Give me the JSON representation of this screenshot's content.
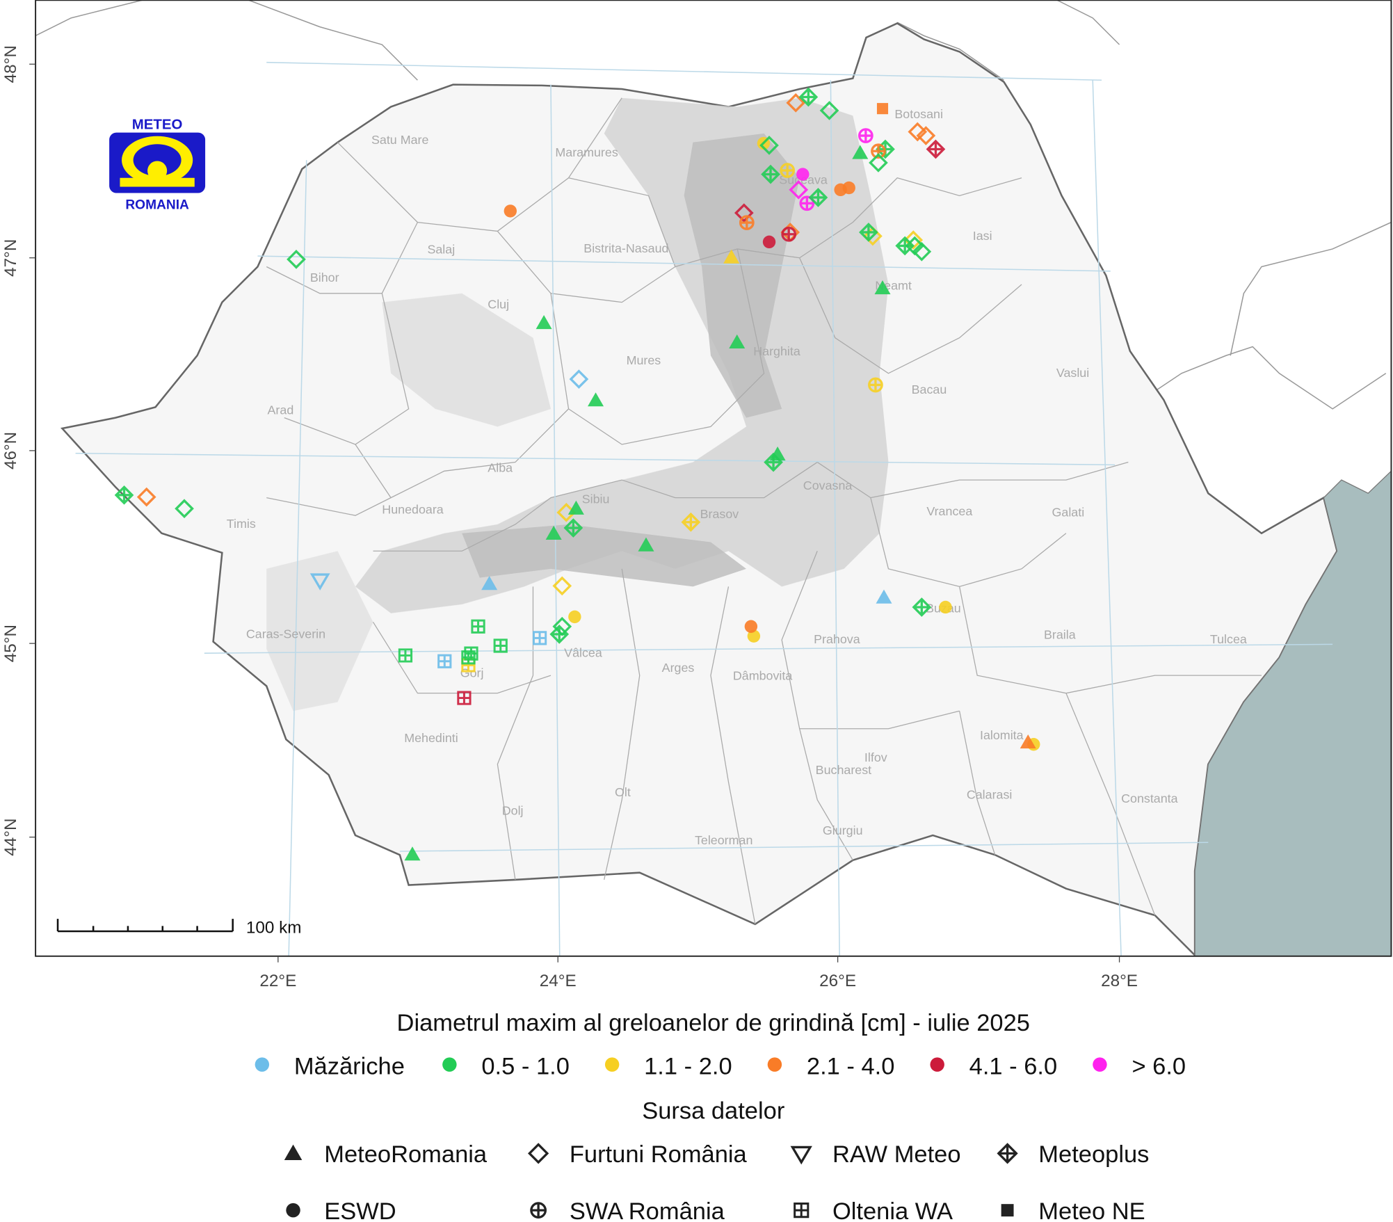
{
  "colors": {
    "Mazariche": "#6cbde9",
    "0.5-1.0": "#22cc55",
    "1.1-2.0": "#f6cf22",
    "2.1-4.0": "#f97c27",
    "4.1-6.0": "#cc1b3a",
    ">6.0": "#ff22ee",
    "sea": "#a8bdbe",
    "graticule": "#bcd9e8"
  },
  "logo": {
    "top": "METEO",
    "bottom": "ROMANIA"
  },
  "axes": {
    "lat_labels": [
      "48°N",
      "47°N",
      "46°N",
      "45°N",
      "44°N"
    ],
    "lon_labels": [
      "22°E",
      "24°E",
      "26°E",
      "28°E"
    ]
  },
  "scale_bar": {
    "label": "100 km"
  },
  "map": {
    "counties": [
      "Satu Mare",
      "Maramures",
      "Botosani",
      "Suceava",
      "Iasi",
      "Salaj",
      "Bistrita-Nasaud",
      "Bihor",
      "Cluj",
      "Neamt",
      "Harghita",
      "Mures",
      "Vaslui",
      "Bacau",
      "Arad",
      "Alba",
      "Covasna",
      "Sibiu",
      "Hunedoara",
      "Brasov",
      "Vrancea",
      "Galati",
      "Timis",
      "Buzau",
      "Caras-Severin",
      "Prahova",
      "Braila",
      "Tulcea",
      "Vâlcea",
      "Arges",
      "Gorj",
      "Dâmbovita",
      "Mehedinti",
      "Ialomita",
      "Ilfov",
      "Bucharest",
      "Calarasi",
      "Constanta",
      "Olt",
      "Dolj",
      "Teleorman",
      "Giurgiu"
    ]
  },
  "legend": {
    "size_title": "Diametrul maxim al greloanelor de grindină [cm] - iulie 2025",
    "size_classes": [
      {
        "key": "Mazariche",
        "label": "Măzăriche"
      },
      {
        "key": "0.5-1.0",
        "label": "0.5 - 1.0"
      },
      {
        "key": "1.1-2.0",
        "label": "1.1 - 2.0"
      },
      {
        "key": "2.1-4.0",
        "label": "2.1 - 4.0"
      },
      {
        "key": "4.1-6.0",
        "label": "4.1 - 6.0"
      },
      {
        "key": ">6.0",
        "label": "> 6.0"
      }
    ],
    "source_title": "Sursa datelor",
    "sources": [
      {
        "key": "triangle",
        "label": "MeteoRomania"
      },
      {
        "key": "diamond",
        "label": "Furtuni România"
      },
      {
        "key": "down-triangle",
        "label": "RAW Meteo"
      },
      {
        "key": "diamond-plus",
        "label": "Meteoplus"
      },
      {
        "key": "circle",
        "label": "ESWD"
      },
      {
        "key": "circle-plus",
        "label": "SWA România"
      },
      {
        "key": "square-plus",
        "label": "Oltenia WA"
      },
      {
        "key": "square",
        "label": "Meteo NE"
      }
    ]
  },
  "points": [
    {
      "lon": 25.7,
      "lat": 47.8,
      "size": "2.1-4.0",
      "source": "diamond"
    },
    {
      "lon": 25.79,
      "lat": 47.83,
      "size": "0.5-1.0",
      "source": "diamond-plus"
    },
    {
      "lon": 25.94,
      "lat": 47.76,
      "size": "0.5-1.0",
      "source": "diamond"
    },
    {
      "lon": 26.32,
      "lat": 47.77,
      "size": "2.1-4.0",
      "source": "square"
    },
    {
      "lon": 25.47,
      "lat": 47.59,
      "size": "1.1-2.0",
      "source": "circle"
    },
    {
      "lon": 25.51,
      "lat": 47.58,
      "size": "0.5-1.0",
      "source": "diamond"
    },
    {
      "lon": 26.2,
      "lat": 47.63,
      "size": ">6.0",
      "source": "circle-plus"
    },
    {
      "lon": 26.16,
      "lat": 47.54,
      "size": "0.5-1.0",
      "source": "triangle"
    },
    {
      "lon": 26.34,
      "lat": 47.56,
      "size": "0.5-1.0",
      "source": "diamond-plus"
    },
    {
      "lon": 26.29,
      "lat": 47.55,
      "size": "2.1-4.0",
      "source": "circle-plus"
    },
    {
      "lon": 26.29,
      "lat": 47.49,
      "size": "0.5-1.0",
      "source": "diamond"
    },
    {
      "lon": 26.57,
      "lat": 47.65,
      "size": "2.1-4.0",
      "source": "diamond"
    },
    {
      "lon": 26.63,
      "lat": 47.63,
      "size": "2.1-4.0",
      "source": "diamond"
    },
    {
      "lon": 26.7,
      "lat": 47.56,
      "size": "4.1-6.0",
      "source": "diamond-plus"
    },
    {
      "lon": 25.52,
      "lat": 47.43,
      "size": "0.5-1.0",
      "source": "diamond-plus"
    },
    {
      "lon": 25.64,
      "lat": 47.45,
      "size": "1.1-2.0",
      "source": "circle-plus"
    },
    {
      "lon": 25.75,
      "lat": 47.43,
      "size": ">6.0",
      "source": "circle"
    },
    {
      "lon": 25.72,
      "lat": 47.35,
      "size": ">6.0",
      "source": "diamond"
    },
    {
      "lon": 25.78,
      "lat": 47.28,
      "size": ">6.0",
      "source": "circle-plus"
    },
    {
      "lon": 25.86,
      "lat": 47.31,
      "size": "0.5-1.0",
      "source": "diamond-plus"
    },
    {
      "lon": 26.02,
      "lat": 47.35,
      "size": "2.1-4.0",
      "source": "circle"
    },
    {
      "lon": 26.08,
      "lat": 47.36,
      "size": "2.1-4.0",
      "source": "circle"
    },
    {
      "lon": 25.33,
      "lat": 47.23,
      "size": "4.1-6.0",
      "source": "diamond"
    },
    {
      "lon": 25.35,
      "lat": 47.18,
      "size": "2.1-4.0",
      "source": "circle-plus"
    },
    {
      "lon": 25.66,
      "lat": 47.13,
      "size": "2.1-4.0",
      "source": "diamond"
    },
    {
      "lon": 25.65,
      "lat": 47.12,
      "size": "4.1-6.0",
      "source": "circle-plus"
    },
    {
      "lon": 25.51,
      "lat": 47.08,
      "size": "4.1-6.0",
      "source": "circle"
    },
    {
      "lon": 25.24,
      "lat": 47.0,
      "size": "1.1-2.0",
      "source": "triangle"
    },
    {
      "lon": 26.25,
      "lat": 47.11,
      "size": "1.1-2.0",
      "source": "diamond"
    },
    {
      "lon": 26.22,
      "lat": 47.13,
      "size": "0.5-1.0",
      "source": "diamond-plus"
    },
    {
      "lon": 26.54,
      "lat": 47.09,
      "size": "1.1-2.0",
      "source": "diamond"
    },
    {
      "lon": 26.48,
      "lat": 47.06,
      "size": "0.5-1.0",
      "source": "diamond-plus"
    },
    {
      "lon": 26.55,
      "lat": 47.06,
      "size": "0.5-1.0",
      "source": "diamond"
    },
    {
      "lon": 26.6,
      "lat": 47.03,
      "size": "0.5-1.0",
      "source": "diamond"
    },
    {
      "lon": 26.32,
      "lat": 46.84,
      "size": "0.5-1.0",
      "source": "triangle"
    },
    {
      "lon": 23.66,
      "lat": 47.24,
      "size": "2.1-4.0",
      "source": "circle"
    },
    {
      "lon": 22.13,
      "lat": 46.99,
      "size": "0.5-1.0",
      "source": "diamond"
    },
    {
      "lon": 23.9,
      "lat": 46.66,
      "size": "0.5-1.0",
      "source": "triangle"
    },
    {
      "lon": 25.28,
      "lat": 46.56,
      "size": "0.5-1.0",
      "source": "triangle"
    },
    {
      "lon": 24.15,
      "lat": 46.37,
      "size": "Mazariche",
      "source": "diamond"
    },
    {
      "lon": 24.27,
      "lat": 46.26,
      "size": "0.5-1.0",
      "source": "triangle"
    },
    {
      "lon": 26.27,
      "lat": 46.34,
      "size": "1.1-2.0",
      "source": "circle-plus"
    },
    {
      "lon": 25.57,
      "lat": 45.98,
      "size": "0.5-1.0",
      "source": "triangle"
    },
    {
      "lon": 25.54,
      "lat": 45.94,
      "size": "0.5-1.0",
      "source": "diamond-plus"
    },
    {
      "lon": 20.9,
      "lat": 45.77,
      "size": "0.5-1.0",
      "source": "diamond-plus"
    },
    {
      "lon": 21.06,
      "lat": 45.76,
      "size": "2.1-4.0",
      "source": "diamond"
    },
    {
      "lon": 21.33,
      "lat": 45.7,
      "size": "0.5-1.0",
      "source": "diamond"
    },
    {
      "lon": 24.06,
      "lat": 45.68,
      "size": "1.1-2.0",
      "source": "diamond"
    },
    {
      "lon": 24.13,
      "lat": 45.7,
      "size": "0.5-1.0",
      "source": "triangle"
    },
    {
      "lon": 24.11,
      "lat": 45.6,
      "size": "0.5-1.0",
      "source": "diamond-plus"
    },
    {
      "lon": 23.97,
      "lat": 45.57,
      "size": "0.5-1.0",
      "source": "triangle"
    },
    {
      "lon": 24.63,
      "lat": 45.51,
      "size": "0.5-1.0",
      "source": "triangle"
    },
    {
      "lon": 24.95,
      "lat": 45.63,
      "size": "1.1-2.0",
      "source": "diamond-plus"
    },
    {
      "lon": 22.3,
      "lat": 45.33,
      "size": "Mazariche",
      "source": "down-triangle"
    },
    {
      "lon": 23.51,
      "lat": 45.31,
      "size": "Mazariche",
      "source": "triangle"
    },
    {
      "lon": 24.03,
      "lat": 45.3,
      "size": "1.1-2.0",
      "source": "diamond"
    },
    {
      "lon": 24.12,
      "lat": 45.14,
      "size": "1.1-2.0",
      "source": "circle"
    },
    {
      "lon": 24.03,
      "lat": 45.09,
      "size": "0.5-1.0",
      "source": "diamond"
    },
    {
      "lon": 24.01,
      "lat": 45.05,
      "size": "0.5-1.0",
      "source": "diamond-plus"
    },
    {
      "lon": 23.43,
      "lat": 45.09,
      "size": "0.5-1.0",
      "source": "square-plus"
    },
    {
      "lon": 23.59,
      "lat": 44.99,
      "size": "0.5-1.0",
      "source": "square-plus"
    },
    {
      "lon": 23.87,
      "lat": 45.03,
      "size": "Mazariche",
      "source": "square-plus"
    },
    {
      "lon": 22.91,
      "lat": 44.94,
      "size": "0.5-1.0",
      "source": "square-plus"
    },
    {
      "lon": 23.19,
      "lat": 44.91,
      "size": "Mazariche",
      "source": "square-plus"
    },
    {
      "lon": 23.36,
      "lat": 44.89,
      "size": "1.1-2.0",
      "source": "square-plus"
    },
    {
      "lon": 23.38,
      "lat": 44.95,
      "size": "0.5-1.0",
      "source": "square-plus"
    },
    {
      "lon": 23.36,
      "lat": 44.93,
      "size": "0.5-1.0",
      "source": "square-plus"
    },
    {
      "lon": 23.33,
      "lat": 44.72,
      "size": "4.1-6.0",
      "source": "square-plus"
    },
    {
      "lon": 25.4,
      "lat": 45.04,
      "size": "1.1-2.0",
      "source": "circle"
    },
    {
      "lon": 25.38,
      "lat": 45.09,
      "size": "2.1-4.0",
      "source": "circle"
    },
    {
      "lon": 26.33,
      "lat": 45.24,
      "size": "Mazariche",
      "source": "triangle"
    },
    {
      "lon": 26.6,
      "lat": 45.19,
      "size": "0.5-1.0",
      "source": "diamond-plus"
    },
    {
      "lon": 26.77,
      "lat": 45.19,
      "size": "1.1-2.0",
      "source": "circle"
    },
    {
      "lon": 27.4,
      "lat": 44.48,
      "size": "1.1-2.0",
      "source": "circle"
    },
    {
      "lon": 27.36,
      "lat": 44.49,
      "size": "2.1-4.0",
      "source": "triangle"
    },
    {
      "lon": 22.96,
      "lat": 43.91,
      "size": "0.5-1.0",
      "source": "triangle"
    }
  ]
}
